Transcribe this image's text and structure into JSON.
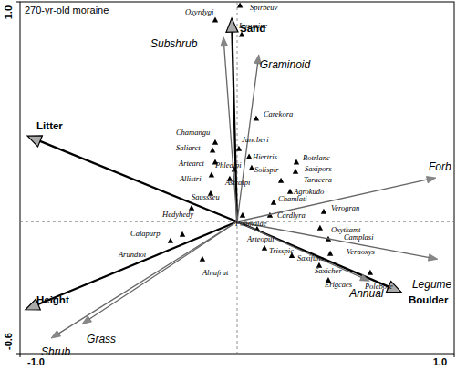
{
  "chart_data": {
    "type": "biplot",
    "title": "270-yr-old moraine",
    "xlim": [
      -1.0,
      1.0
    ],
    "ylim": [
      -0.6,
      1.0
    ],
    "xticks": [
      {
        "value": -1.0,
        "label": "-1.0"
      },
      {
        "value": 1.0,
        "label": "1.0"
      }
    ],
    "yticks": [
      {
        "value": -0.6,
        "label": "-0.6"
      },
      {
        "value": 1.0,
        "label": "1.0"
      }
    ],
    "series": [
      {
        "type": "scatter",
        "marker": "triangle",
        "color": "#000000",
        "labels": [
          "Oxyrdygi",
          "Spirbeuv",
          "Lusupipe",
          "Carekora",
          "Chamangu",
          "Juncberi",
          "Saliarct",
          "Hiertris",
          "Botrlanc",
          "Saxipors",
          "Taracera",
          "Artearct",
          "Phlealpi",
          "Solispir",
          "Allistri",
          "Astralpi",
          "Agrokudo",
          "Chamlati",
          "Saussseu",
          "Cardlyra",
          "Verogran",
          "Oxytkamt",
          "Hedyhedy",
          "Poamalae",
          "Camplasi",
          "Calapurp",
          "Veraoxys",
          "Arundioi",
          "Trisspic",
          "Arteopul",
          "Saxifuns",
          "Saxicher",
          "Alnufrut",
          "Erigcaes",
          "Polebore"
        ],
        "x": [
          -0.101,
          0.013,
          0.021,
          0.088,
          -0.101,
          0.008,
          -0.113,
          0.055,
          0.273,
          0.269,
          0.202,
          -0.101,
          -0.013,
          0.067,
          -0.118,
          -0.034,
          0.244,
          0.168,
          -0.122,
          0.151,
          0.399,
          0.382,
          -0.21,
          0.025,
          0.42,
          -0.252,
          0.429,
          -0.307,
          0.126,
          0.092,
          0.252,
          0.378,
          -0.16,
          0.42,
          0.613
        ],
        "values": [
          0.917,
          0.983,
          0.851,
          0.469,
          0.361,
          0.332,
          0.324,
          0.295,
          0.27,
          0.228,
          0.187,
          0.27,
          0.237,
          0.245,
          0.212,
          0.195,
          0.137,
          0.087,
          0.129,
          0.029,
          0.046,
          -0.029,
          0.062,
          0.029,
          -0.079,
          -0.058,
          -0.145,
          -0.087,
          -0.12,
          -0.033,
          -0.154,
          -0.199,
          -0.17,
          -0.266,
          -0.232
        ]
      },
      {
        "type": "arrow",
        "color": "#000000",
        "labels": [
          "Sand",
          "Litter",
          "Boulder",
          "Height"
        ],
        "x": [
          -0.025,
          -0.966,
          0.756,
          -0.975
        ],
        "values": [
          0.925,
          0.39,
          -0.32,
          -0.4
        ]
      },
      {
        "type": "arrow",
        "color": "#666666",
        "labels": [
          "Subshrub",
          "Graminoid",
          "Forb",
          "Legume",
          "Annual",
          "Shrub",
          "Grass"
        ],
        "x": [
          -0.063,
          0.1,
          0.916,
          0.924,
          0.61,
          -0.857,
          -0.714
        ],
        "values": [
          0.84,
          0.76,
          0.2,
          -0.17,
          -0.27,
          -0.53,
          -0.465
        ]
      }
    ]
  }
}
